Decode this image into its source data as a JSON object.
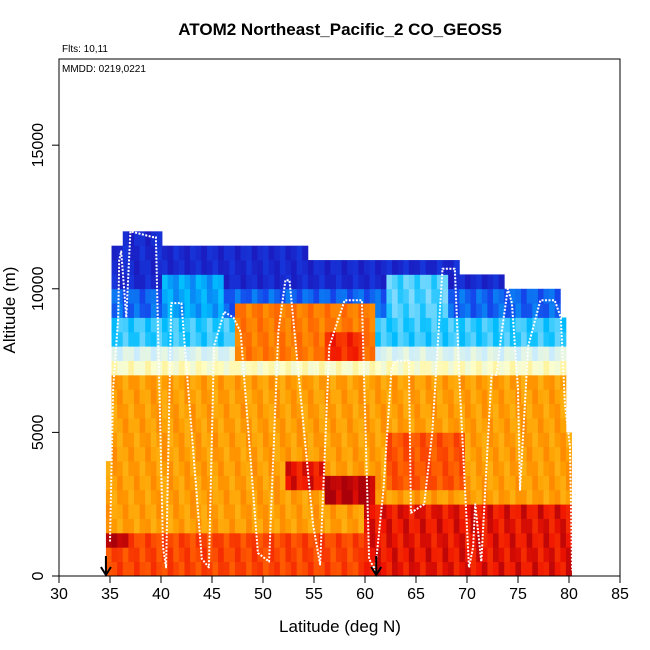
{
  "chart_data": {
    "type": "heatmap",
    "title": "ATOM2 Northeast_Pacific_2 CO_GEOS5",
    "annotations": {
      "flights": "Flts: 10,11",
      "dates": "MMDD: 0219,0221"
    },
    "xlabel": "Latitude (deg N)",
    "ylabel": "Altitude (m)",
    "xlim": [
      30,
      85
    ],
    "ylim": [
      0,
      18000
    ],
    "x_ticks": [
      30,
      35,
      40,
      45,
      50,
      55,
      60,
      65,
      70,
      75,
      80,
      85
    ],
    "x_tick_labels": [
      "30",
      "35",
      "40",
      "45",
      "50",
      "55",
      "60",
      "65",
      "70",
      "75",
      "80",
      "85"
    ],
    "y_ticks": [
      0,
      5000,
      10000,
      15000
    ],
    "y_tick_labels": [
      "0",
      "5000",
      "10000",
      "15000"
    ],
    "grid": false,
    "colors": {
      "low": "#1a1aff",
      "mid": "#ffffcc",
      "high": "#ff2200",
      "flight_track": "#ffffff",
      "markers": "#000000"
    },
    "field_extent": {
      "lat_min": 34.6,
      "lat_max": 80.4,
      "alt_min": 0,
      "alt_max": 12000
    },
    "column_tops": [
      {
        "lat_start": 34.6,
        "lat_end": 35.2,
        "top": 4000
      },
      {
        "lat_start": 35.2,
        "lat_end": 36.1,
        "top": 11500
      },
      {
        "lat_start": 36.1,
        "lat_end": 40.2,
        "top": 12000
      },
      {
        "lat_start": 40.2,
        "lat_end": 54.6,
        "top": 11500
      },
      {
        "lat_start": 54.6,
        "lat_end": 69.2,
        "top": 11000
      },
      {
        "lat_start": 69.2,
        "lat_end": 73.8,
        "top": 10500
      },
      {
        "lat_start": 73.8,
        "lat_end": 79.2,
        "top": 10000
      },
      {
        "lat_start": 79.2,
        "lat_end": 79.8,
        "top": 9000
      },
      {
        "lat_start": 79.8,
        "lat_end": 80.4,
        "top": 5000
      }
    ],
    "layers": [
      {
        "alt_min": 0,
        "alt_max": 1500,
        "value": 0.88
      },
      {
        "alt_min": 1500,
        "alt_max": 6800,
        "value": 0.74
      },
      {
        "alt_min": 6800,
        "alt_max": 7500,
        "value": 0.5
      },
      {
        "alt_min": 7500,
        "alt_max": 8200,
        "value": 0.42
      },
      {
        "alt_min": 8200,
        "alt_max": 9200,
        "value": 0.28
      },
      {
        "alt_min": 9200,
        "alt_max": 10200,
        "value": 0.15
      },
      {
        "alt_min": 10200,
        "alt_max": 12000,
        "value": 0.04
      }
    ],
    "features": [
      {
        "lat_min": 47,
        "lat_max": 61,
        "alt_min": 7500,
        "alt_max": 9500,
        "value": 0.8
      },
      {
        "lat_min": 56,
        "lat_max": 60,
        "alt_min": 7500,
        "alt_max": 8500,
        "value": 0.92
      },
      {
        "lat_min": 52,
        "lat_max": 56,
        "alt_min": 2800,
        "alt_max": 4000,
        "value": 0.95
      },
      {
        "lat_min": 56,
        "lat_max": 61,
        "alt_min": 2500,
        "alt_max": 3500,
        "value": 1.0
      },
      {
        "lat_min": 62,
        "lat_max": 70,
        "alt_min": 3000,
        "alt_max": 5000,
        "value": 0.86
      },
      {
        "lat_min": 60,
        "lat_max": 80.4,
        "alt_min": 0,
        "alt_max": 2500,
        "value": 0.95
      },
      {
        "lat_min": 34.6,
        "lat_max": 37,
        "alt_min": 1000,
        "alt_max": 1500,
        "value": 1.0
      },
      {
        "lat_min": 62,
        "lat_max": 68,
        "alt_min": 9000,
        "alt_max": 10500,
        "value": 0.3
      },
      {
        "lat_min": 40,
        "lat_max": 46,
        "alt_min": 9200,
        "alt_max": 10500,
        "value": 0.22
      }
    ],
    "flight_track": {
      "lat": [
        35.0,
        35.3,
        35.8,
        35.9,
        36.1,
        36.6,
        37.0,
        39.2,
        39.5,
        40.2,
        40.5,
        41.0,
        42.0,
        44.0,
        44.7,
        45.2,
        46.2,
        47.1,
        47.8,
        49.5,
        50.6,
        51.5,
        52.2,
        52.6,
        54.9,
        55.6,
        56.5,
        58.0,
        59.7,
        60.4,
        61.0,
        61.8,
        62.6,
        63.0,
        64.3,
        64.5,
        65.8,
        66.6,
        67.6,
        68.8,
        69.3,
        70.2,
        70.6,
        70.8,
        71.4,
        72.4,
        72.9,
        73.4,
        74.0,
        74.4,
        75.0,
        75.2,
        76.0,
        77.2,
        78.6,
        79.2,
        79.6,
        80.1,
        80.3
      ],
      "alt": [
        1200,
        6500,
        9000,
        11000,
        11300,
        9000,
        12000,
        11800,
        11800,
        1000,
        300,
        9500,
        9500,
        600,
        300,
        8000,
        9200,
        9000,
        8500,
        800,
        500,
        8500,
        10300,
        10300,
        1800,
        400,
        8000,
        9600,
        9600,
        600,
        200,
        3000,
        7200,
        7500,
        7500,
        2200,
        2500,
        5000,
        10700,
        10700,
        6500,
        300,
        1000,
        2500,
        500,
        7000,
        7000,
        8500,
        10000,
        9500,
        6500,
        3000,
        8000,
        9600,
        9600,
        9000,
        6000,
        4500,
        200
      ]
    },
    "markers": [
      {
        "lat": 34.6,
        "alt": 0
      },
      {
        "lat": 61.1,
        "alt": 0
      }
    ]
  }
}
